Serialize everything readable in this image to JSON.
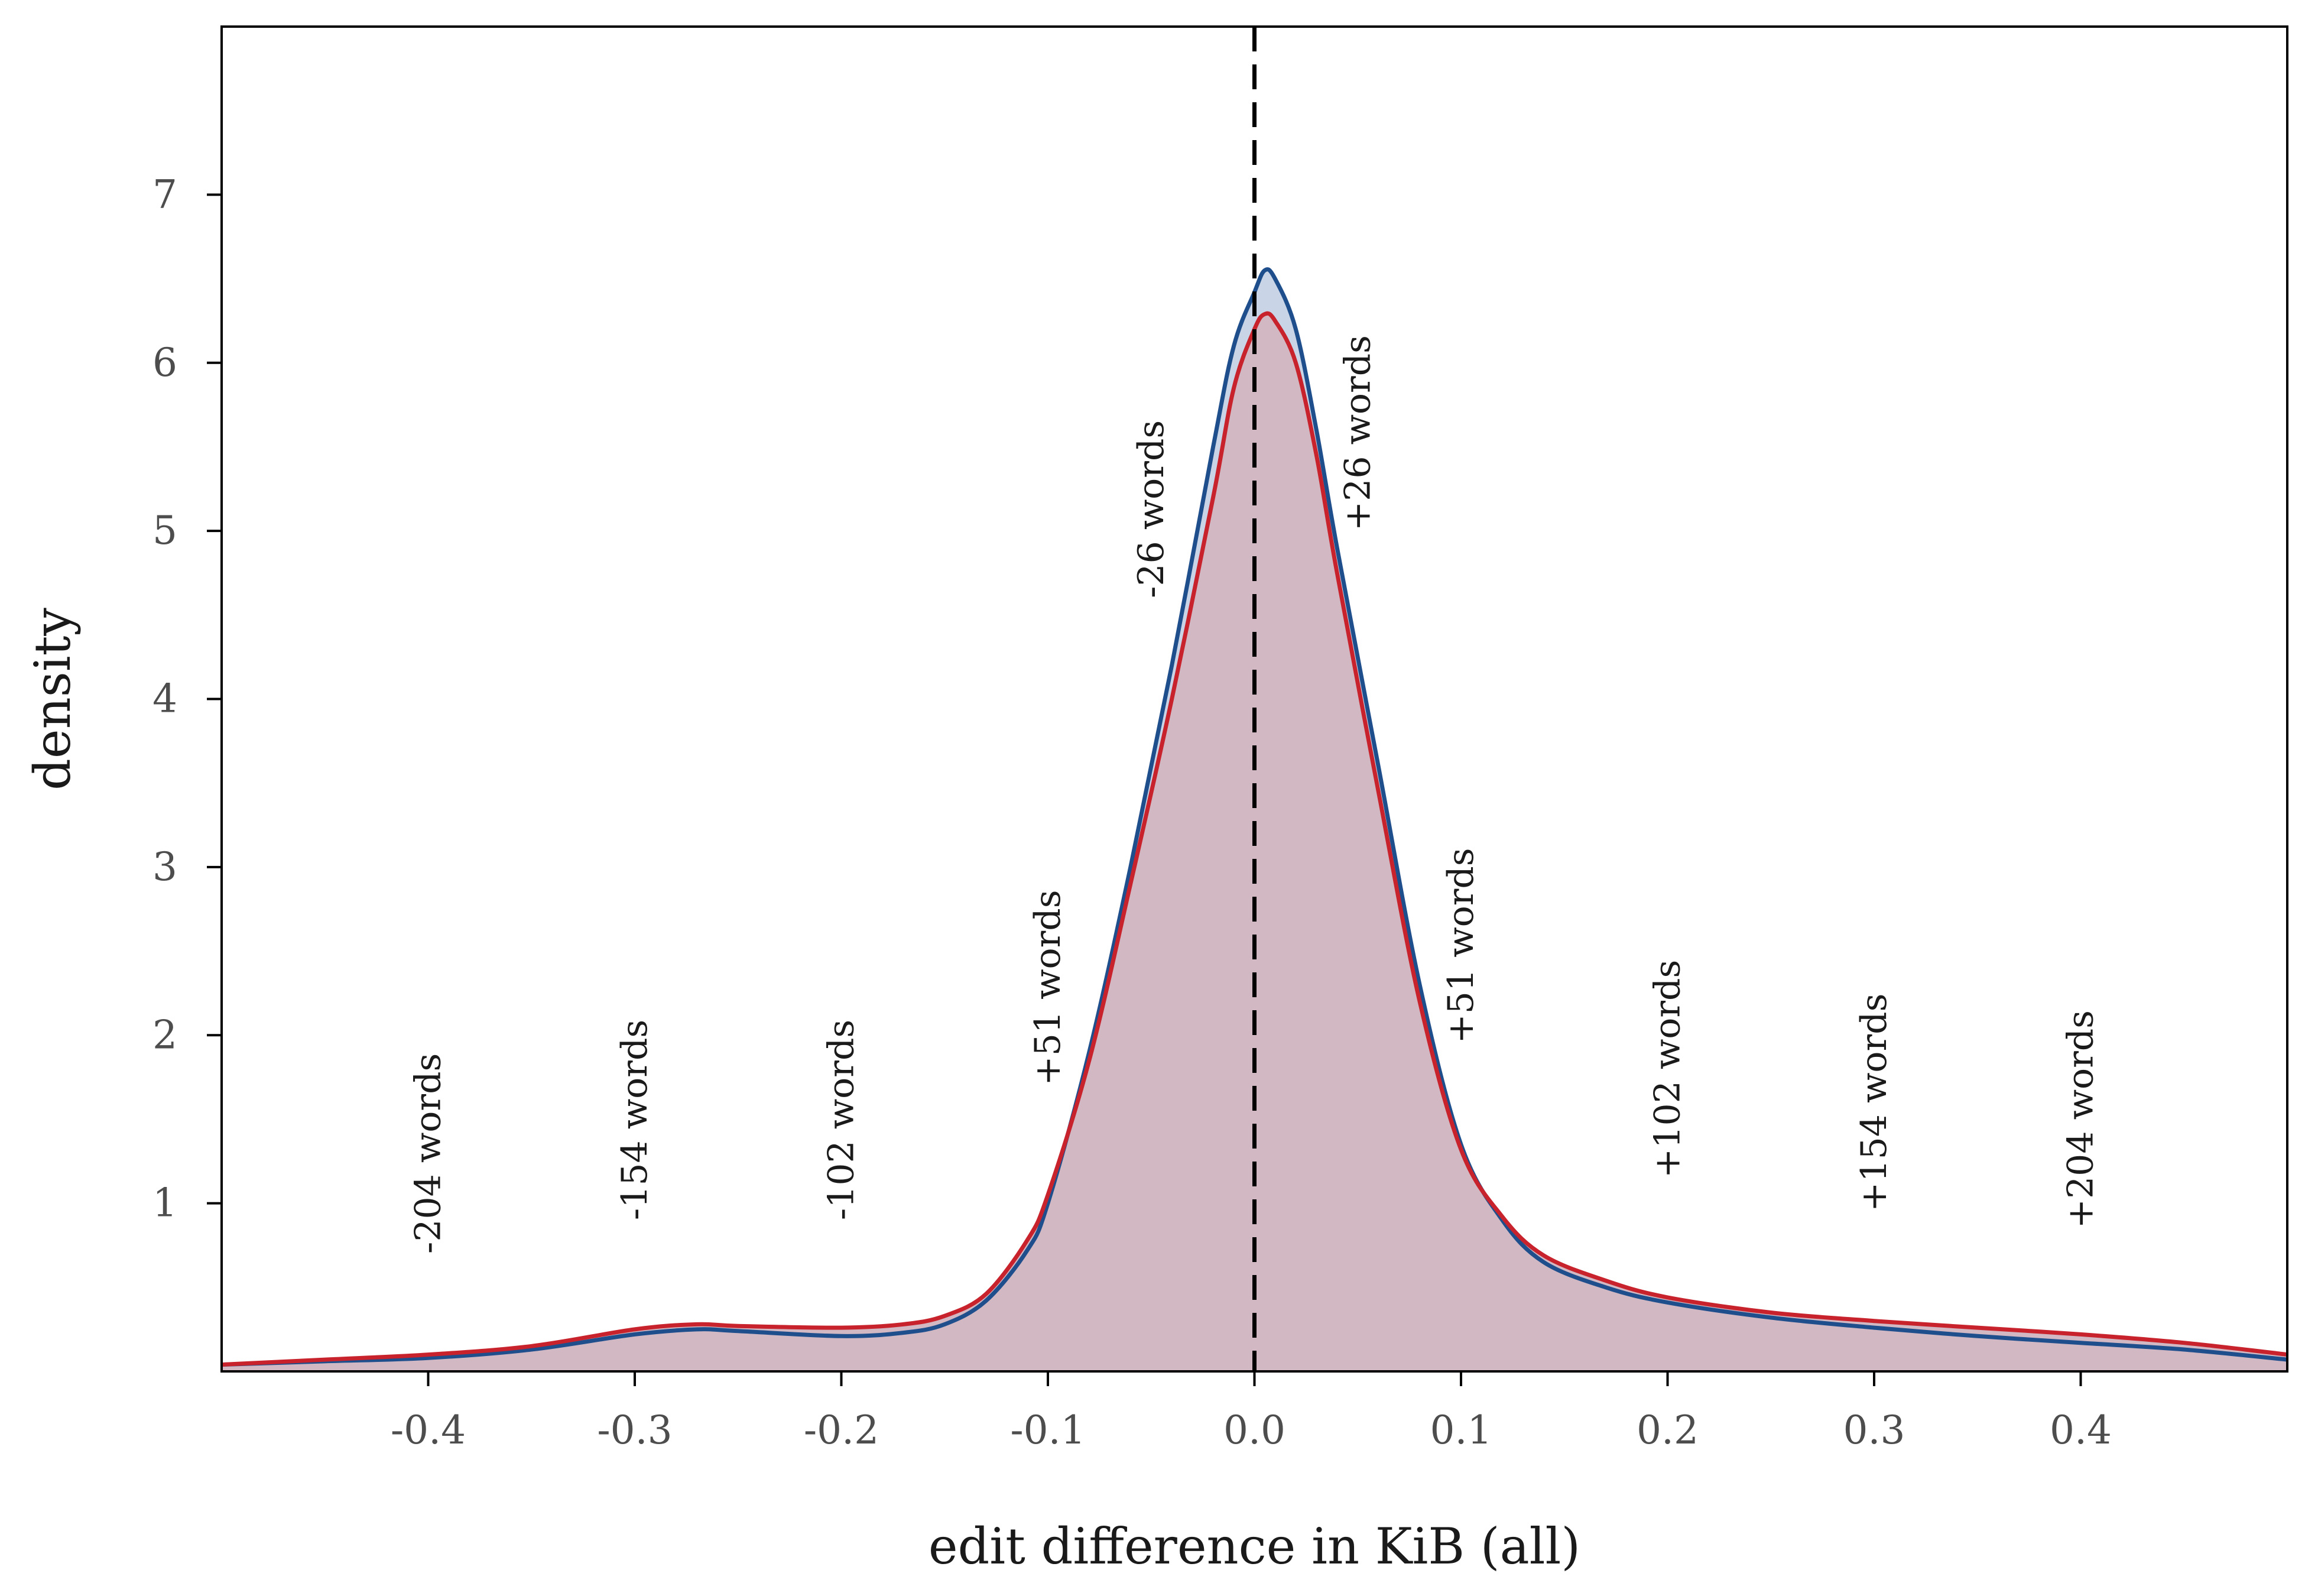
{
  "chart_data": {
    "type": "area",
    "title": "",
    "xlabel": "edit difference in KiB (all)",
    "ylabel": "density",
    "xlim": [
      -0.5,
      0.5
    ],
    "ylim": [
      0,
      8
    ],
    "xticks": [
      {
        "value": -0.4,
        "label": "-0.4"
      },
      {
        "value": -0.3,
        "label": "-0.3"
      },
      {
        "value": -0.2,
        "label": "-0.2"
      },
      {
        "value": -0.1,
        "label": "-0.1"
      },
      {
        "value": 0.0,
        "label": "0.0"
      },
      {
        "value": 0.1,
        "label": "0.1"
      },
      {
        "value": 0.2,
        "label": "0.2"
      },
      {
        "value": 0.3,
        "label": "0.3"
      },
      {
        "value": 0.4,
        "label": "0.4"
      }
    ],
    "yticks": [
      {
        "value": 1,
        "label": "1"
      },
      {
        "value": 2,
        "label": "2"
      },
      {
        "value": 3,
        "label": "3"
      },
      {
        "value": 4,
        "label": "4"
      },
      {
        "value": 5,
        "label": "5"
      },
      {
        "value": 6,
        "label": "6"
      },
      {
        "value": 7,
        "label": "7"
      }
    ],
    "grid": false,
    "legend": "none",
    "reference_line": {
      "x": 0.0,
      "style": "dashed",
      "color": "#000000"
    },
    "series": [
      {
        "line_color": "#1f4e8c",
        "fill_color": "#c9d5e6",
        "points": [
          [
            -0.5,
            0.04
          ],
          [
            -0.45,
            0.06
          ],
          [
            -0.4,
            0.08
          ],
          [
            -0.35,
            0.13
          ],
          [
            -0.3,
            0.22
          ],
          [
            -0.27,
            0.25
          ],
          [
            -0.25,
            0.24
          ],
          [
            -0.2,
            0.21
          ],
          [
            -0.17,
            0.23
          ],
          [
            -0.15,
            0.28
          ],
          [
            -0.13,
            0.42
          ],
          [
            -0.11,
            0.72
          ],
          [
            -0.1,
            1.0
          ],
          [
            -0.08,
            1.9
          ],
          [
            -0.06,
            3.0
          ],
          [
            -0.04,
            4.2
          ],
          [
            -0.02,
            5.5
          ],
          [
            -0.01,
            6.1
          ],
          [
            0.0,
            6.42
          ],
          [
            0.005,
            6.55
          ],
          [
            0.01,
            6.5
          ],
          [
            0.02,
            6.2
          ],
          [
            0.03,
            5.6
          ],
          [
            0.04,
            4.9
          ],
          [
            0.06,
            3.6
          ],
          [
            0.08,
            2.3
          ],
          [
            0.1,
            1.35
          ],
          [
            0.12,
            0.9
          ],
          [
            0.14,
            0.65
          ],
          [
            0.17,
            0.5
          ],
          [
            0.2,
            0.41
          ],
          [
            0.25,
            0.32
          ],
          [
            0.3,
            0.26
          ],
          [
            0.35,
            0.21
          ],
          [
            0.4,
            0.17
          ],
          [
            0.45,
            0.13
          ],
          [
            0.5,
            0.07
          ]
        ]
      },
      {
        "line_color": "#c8232c",
        "fill_color": "#d1b8c3",
        "points": [
          [
            -0.5,
            0.04
          ],
          [
            -0.45,
            0.07
          ],
          [
            -0.4,
            0.1
          ],
          [
            -0.35,
            0.15
          ],
          [
            -0.3,
            0.25
          ],
          [
            -0.27,
            0.28
          ],
          [
            -0.25,
            0.27
          ],
          [
            -0.2,
            0.26
          ],
          [
            -0.17,
            0.28
          ],
          [
            -0.15,
            0.33
          ],
          [
            -0.13,
            0.46
          ],
          [
            -0.11,
            0.78
          ],
          [
            -0.1,
            1.05
          ],
          [
            -0.08,
            1.85
          ],
          [
            -0.06,
            2.9
          ],
          [
            -0.04,
            4.0
          ],
          [
            -0.02,
            5.2
          ],
          [
            -0.01,
            5.85
          ],
          [
            0.0,
            6.2
          ],
          [
            0.005,
            6.29
          ],
          [
            0.01,
            6.25
          ],
          [
            0.02,
            6.0
          ],
          [
            0.03,
            5.45
          ],
          [
            0.04,
            4.75
          ],
          [
            0.06,
            3.45
          ],
          [
            0.08,
            2.2
          ],
          [
            0.1,
            1.32
          ],
          [
            0.12,
            0.92
          ],
          [
            0.14,
            0.69
          ],
          [
            0.17,
            0.54
          ],
          [
            0.2,
            0.44
          ],
          [
            0.25,
            0.35
          ],
          [
            0.3,
            0.3
          ],
          [
            0.35,
            0.26
          ],
          [
            0.4,
            0.22
          ],
          [
            0.45,
            0.17
          ],
          [
            0.5,
            0.1
          ]
        ]
      }
    ],
    "annotations": [
      {
        "text": "-204 words",
        "x": -0.4,
        "y": 0.7
      },
      {
        "text": "-154 words",
        "x": -0.3,
        "y": 0.9
      },
      {
        "text": "-102 words",
        "x": -0.2,
        "y": 0.9
      },
      {
        "text": "+51 words",
        "x": -0.1,
        "y": 1.7
      },
      {
        "text": "-26 words",
        "x": -0.05,
        "y": 4.6
      },
      {
        "text": "+26 words",
        "x": 0.05,
        "y": 5.0
      },
      {
        "text": "+51 words",
        "x": 0.1,
        "y": 1.95
      },
      {
        "text": "+102 words",
        "x": 0.2,
        "y": 1.15
      },
      {
        "text": "+154 words",
        "x": 0.3,
        "y": 0.95
      },
      {
        "text": "+204 words",
        "x": 0.4,
        "y": 0.85
      }
    ]
  }
}
